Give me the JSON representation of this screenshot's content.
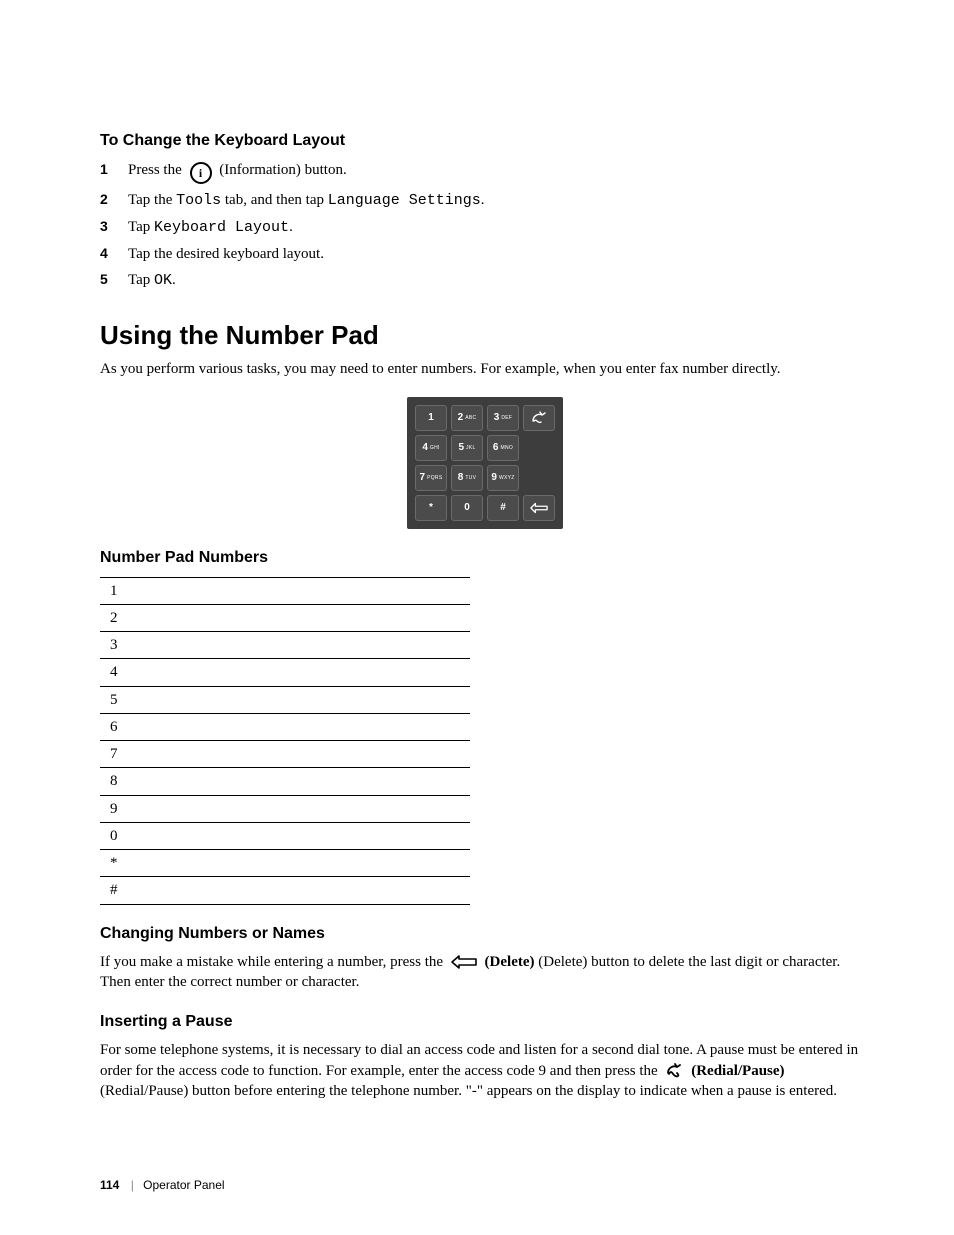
{
  "headings": {
    "change_kb": "To Change the Keyboard Layout",
    "using_numpad": "Using the Number Pad",
    "numpad_numbers": "Number Pad Numbers",
    "changing": "Changing Numbers or Names",
    "pause": "Inserting a Pause"
  },
  "steps": {
    "s1_pre": "Press the ",
    "s1_post": " (Information) button.",
    "s2_a": "Tap the ",
    "s2_tools": "Tools",
    "s2_b": " tab, and then tap ",
    "s2_lang": "Language Settings",
    "s2_c": ".",
    "s3_a": "Tap ",
    "s3_kb": "Keyboard Layout",
    "s3_b": ".",
    "s4": "Tap the desired keyboard layout.",
    "s5_a": "Tap ",
    "s5_ok": "OK",
    "s5_b": "."
  },
  "step_nums": {
    "n1": "1",
    "n2": "2",
    "n3": "3",
    "n4": "4",
    "n5": "5"
  },
  "info_glyph": "i",
  "intro": "As you perform various tasks, you may need to enter numbers. For example, when you enter fax number directly.",
  "keypad": {
    "bg": "#3d3d3d",
    "key_bg": "#4b4b4b",
    "keys": [
      {
        "big": "1",
        "small": ""
      },
      {
        "big": "2",
        "small": "ABC"
      },
      {
        "big": "3",
        "small": "DEF"
      },
      {
        "icon": "redial"
      },
      {
        "big": "4",
        "small": "GHI"
      },
      {
        "big": "5",
        "small": "JKL"
      },
      {
        "big": "6",
        "small": "MNO"
      },
      {
        "blank": true
      },
      {
        "big": "7",
        "small": "PQRS"
      },
      {
        "big": "8",
        "small": "TUV"
      },
      {
        "big": "9",
        "small": "WXYZ"
      },
      {
        "blank": true
      },
      {
        "big": "*",
        "small": ""
      },
      {
        "big": "0",
        "small": ""
      },
      {
        "big": "#",
        "small": ""
      },
      {
        "icon": "back"
      }
    ]
  },
  "num_rows": [
    "1",
    "2",
    "3",
    "4",
    "5",
    "6",
    "7",
    "8",
    "9",
    "0",
    "*",
    "#"
  ],
  "changing": {
    "a": "If you make a mistake while entering a number, press the ",
    "b": " (Delete) button to delete the last digit or character. Then enter the correct number or character.",
    "delete_label": "(Delete)"
  },
  "pause": {
    "a": "For some telephone systems, it is necessary to dial an access code and listen for a second dial tone. A pause must be entered in order for the access code to function. For example, enter the access code 9 and then press the ",
    "b": " (Redial/Pause) button before entering the telephone number. \"-\" appears on the display to indicate when a pause is entered.",
    "redial_label": "(Redial/Pause)"
  },
  "footer": {
    "page": "114",
    "section": "Operator Panel",
    "sep": "|"
  }
}
